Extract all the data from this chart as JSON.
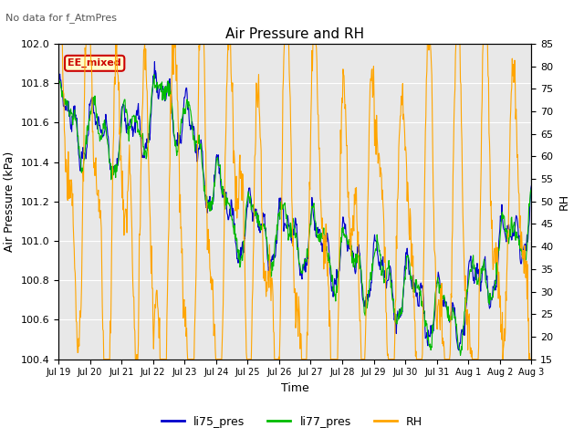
{
  "title": "Air Pressure and RH",
  "subtitle": "No data for f_AtmPres",
  "xlabel": "Time",
  "ylabel_left": "Air Pressure (kPa)",
  "ylabel_right": "RH",
  "ylim_left": [
    100.4,
    102.0
  ],
  "ylim_right": [
    15,
    85
  ],
  "yticks_left": [
    100.4,
    100.6,
    100.8,
    101.0,
    101.2,
    101.4,
    101.6,
    101.8,
    102.0
  ],
  "yticks_right": [
    15,
    20,
    25,
    30,
    35,
    40,
    45,
    50,
    55,
    60,
    65,
    70,
    75,
    80,
    85
  ],
  "xtick_labels": [
    "Jul 19",
    "Jul 20",
    "Jul 21",
    "Jul 22",
    "Jul 23",
    "Jul 24",
    "Jul 25",
    "Jul 26",
    "Jul 27",
    "Jul 28",
    "Jul 29",
    "Jul 30",
    "Jul 31",
    "Aug 1",
    "Aug 2",
    "Aug 3"
  ],
  "annotation_text": "EE_mixed",
  "color_li75": "#0000cc",
  "color_li77": "#00bb00",
  "color_rh": "#ffa500",
  "color_bg": "#e8e8e8",
  "legend_items": [
    "li75_pres",
    "li77_pres",
    "RH"
  ],
  "grid_color": "#ffffff"
}
